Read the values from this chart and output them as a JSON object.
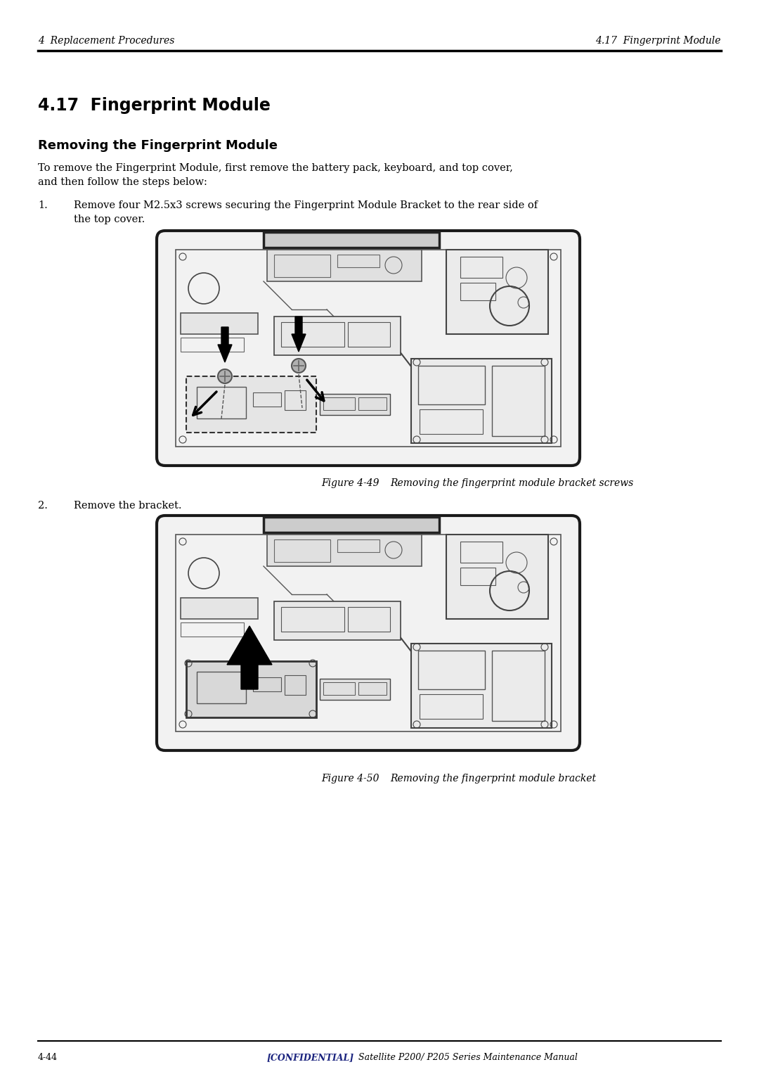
{
  "page_width": 10.8,
  "page_height": 15.27,
  "bg_color": "#ffffff",
  "header_left": "4  Replacement Procedures",
  "header_right": "4.17  Fingerprint Module",
  "section_title": "4.17  Fingerprint Module",
  "subsection_title": "Removing the Fingerprint Module",
  "intro_line1": "To remove the Fingerprint Module, first remove the battery pack, keyboard, and top cover,",
  "intro_line2": "and then follow the steps below:",
  "step1_num": "1.",
  "step1_line1": "Remove four M2.5x3 screws securing the Fingerprint Module Bracket to the rear side of",
  "step1_line2": "the top cover.",
  "fig1_caption_a": "Figure 4-49",
  "fig1_caption_b": "Removing the fingerprint module bracket screws",
  "step2_num": "2.",
  "step2_text": "Remove the bracket.",
  "fig2_caption_a": "Figure 4-50",
  "fig2_caption_b": "Removing the fingerprint module bracket",
  "footer_left": "4-44",
  "footer_confidential": "[CONFIDENTIAL]",
  "footer_rest": "Satellite P200/ P205 Series Maintenance Manual",
  "footer_confidential_color": "#1a237e",
  "text_color": "#000000",
  "line_color": "#000000",
  "draw_color": "#1a1a1a",
  "light_gray": "#e8e8e8",
  "mid_gray": "#c8c8c8"
}
